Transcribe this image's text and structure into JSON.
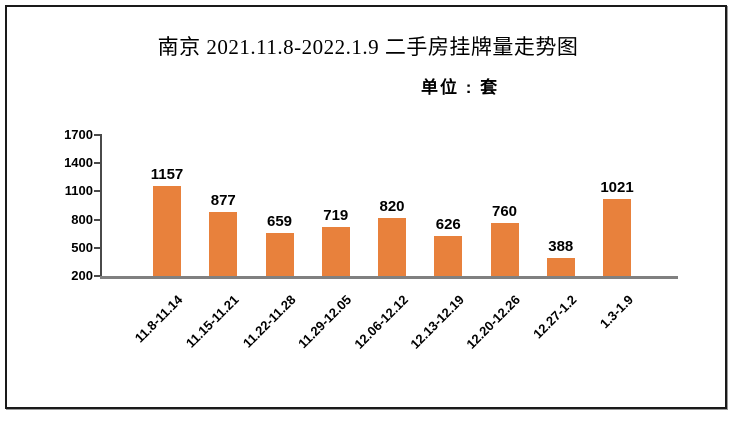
{
  "title": "南京 2021.11.8-2022.1.9 二手房挂牌量走势图",
  "unit_label": "单位 : 套",
  "colors": {
    "bar": "#E8813C",
    "axis": "#4A4A4A",
    "baseline": "#808080",
    "frame_border": "#1A1A1A",
    "text": "#000000",
    "background": "#FFFFFF"
  },
  "chart_data": {
    "type": "bar",
    "title": "南京 2021.11.8-2022.1.9 二手房挂牌量走势图",
    "subtitle": "单位 : 套",
    "categories": [
      "11.8-11.14",
      "11.15-11.21",
      "11.22-11.28",
      "11.29-12.05",
      "12.06-12.12",
      "12.13-12.19",
      "12.20-12.26",
      "12.27-1.2",
      "1.3-1.9"
    ],
    "values": [
      1157,
      877,
      659,
      719,
      820,
      626,
      760,
      388,
      1021
    ],
    "xlabel": "",
    "ylabel": "",
    "yticks": [
      200,
      500,
      800,
      1100,
      1400,
      1700
    ],
    "ylim": [
      200,
      1700
    ],
    "grid": false,
    "legend": false,
    "value_labels_shown": true,
    "x_label_rotation_deg": 45
  }
}
